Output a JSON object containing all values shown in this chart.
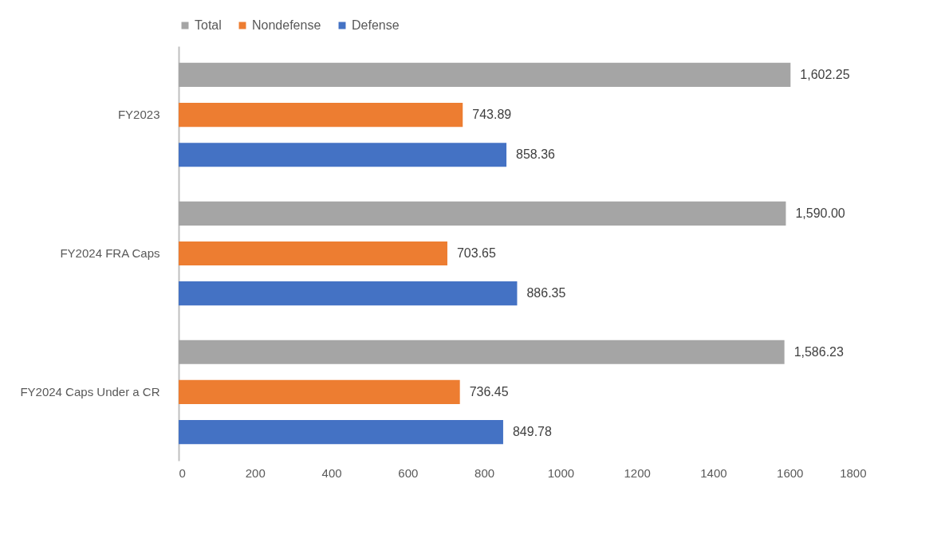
{
  "chart_data": {
    "type": "bar",
    "orientation": "horizontal",
    "categories": [
      "FY2023",
      "FY2024 FRA Caps",
      "FY2024 Caps Under a CR"
    ],
    "series": [
      {
        "name": "Total",
        "color": "#a5a5a5",
        "values": [
          1602.25,
          1590.0,
          1586.23
        ],
        "value_labels": [
          "1,602.25",
          "1,590.00",
          "1,586.23"
        ]
      },
      {
        "name": "Nondefense",
        "color": "#ed7d31",
        "values": [
          743.89,
          703.65,
          736.45
        ],
        "value_labels": [
          "743.89",
          "703.65",
          "736.45"
        ]
      },
      {
        "name": "Defense",
        "color": "#4472c4",
        "values": [
          858.36,
          886.35,
          849.78
        ],
        "value_labels": [
          "858.36",
          "886.35",
          "849.78"
        ]
      }
    ],
    "xlim": [
      0,
      1800
    ],
    "xticks": [
      0,
      200,
      400,
      600,
      800,
      1000,
      1200,
      1400,
      1600,
      1800
    ],
    "grid": false,
    "legend": "top"
  }
}
